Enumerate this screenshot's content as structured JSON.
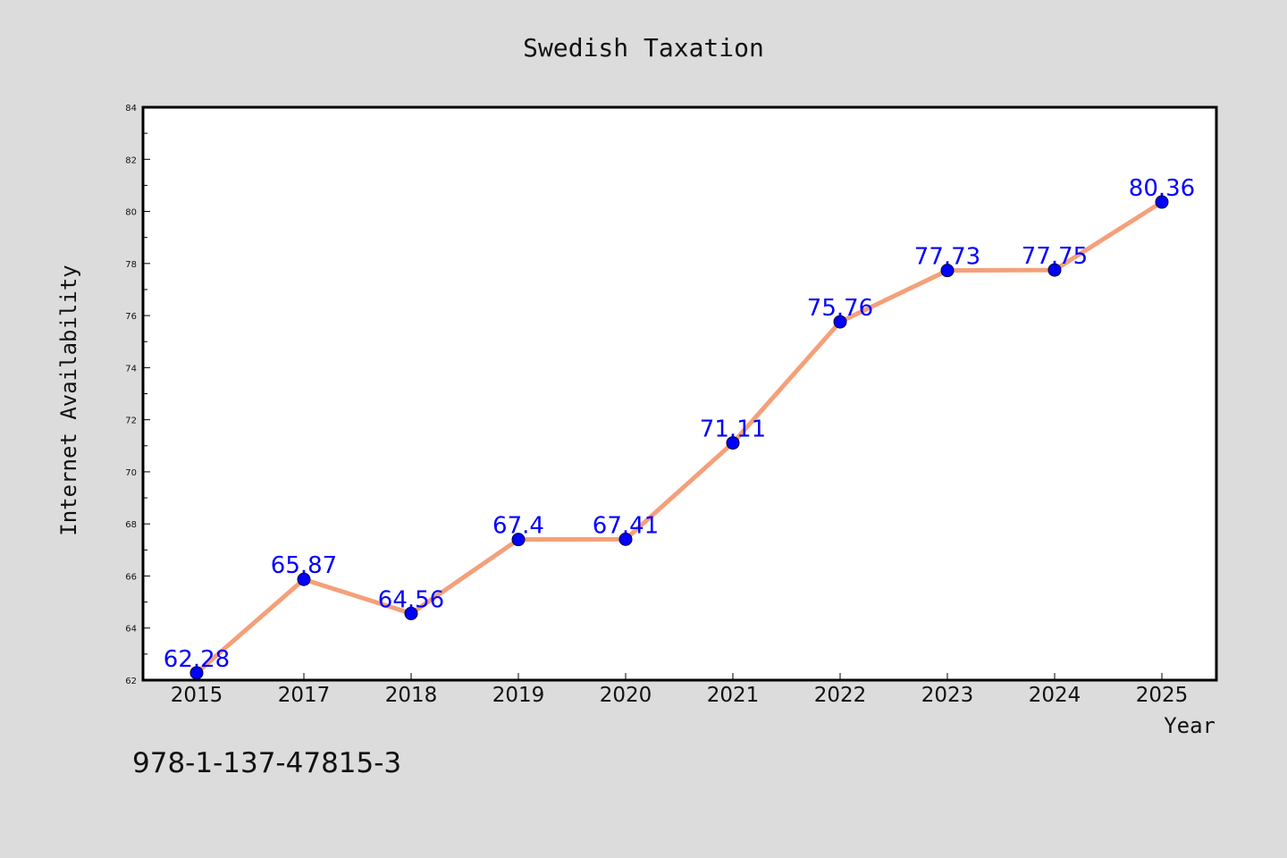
{
  "chart_data": {
    "type": "line",
    "title": "Swedish Taxation",
    "xlabel": "Year",
    "ylabel": "Internet Availability",
    "categories": [
      "2015",
      "2017",
      "2018",
      "2019",
      "2020",
      "2021",
      "2022",
      "2023",
      "2024",
      "2025"
    ],
    "values": [
      62.28,
      65.87,
      64.56,
      67.4,
      67.41,
      71.11,
      75.76,
      77.73,
      77.75,
      80.36
    ],
    "data_labels": [
      "62.28",
      "65.87",
      "64.56",
      "67.4",
      "67.41",
      "71.11",
      "75.76",
      "77.73",
      "77.75",
      "80.36"
    ],
    "ylim": [
      62,
      84
    ],
    "yticks": [
      "62",
      "64",
      "66",
      "68",
      "70",
      "72",
      "74",
      "76",
      "78",
      "80",
      "82",
      "84"
    ],
    "grid": false,
    "legend": "none",
    "colors": {
      "line": "#f4a07a",
      "marker": "#0000ff",
      "label": "#0000ff",
      "background": "#dcdcdc",
      "plot_background": "#ffffff"
    }
  },
  "footer": {
    "isbn": "978-1-137-47815-3"
  }
}
